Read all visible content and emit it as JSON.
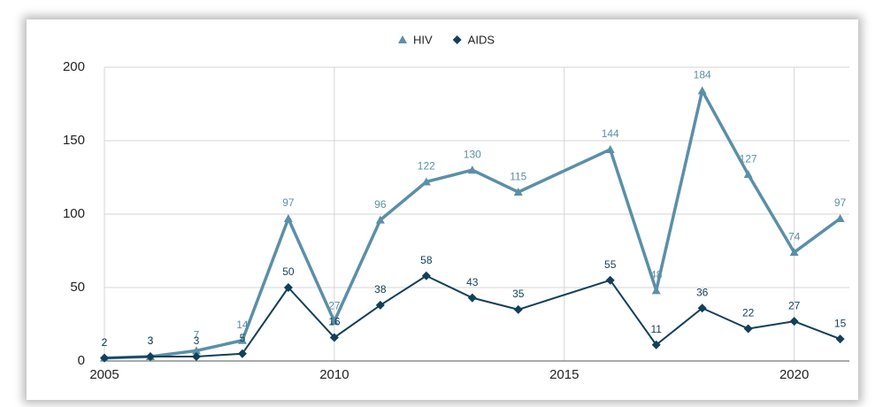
{
  "chart_data": {
    "type": "line",
    "x": [
      2005,
      2006,
      2007,
      2008,
      2009,
      2010,
      2011,
      2012,
      2013,
      2014,
      2016,
      2017,
      2018,
      2019,
      2020,
      2021
    ],
    "series": [
      {
        "name": "HIV",
        "color": "#5b8fa8",
        "marker": "triangle",
        "values": [
          2,
          3,
          7,
          14,
          97,
          27,
          96,
          122,
          130,
          115,
          144,
          48,
          184,
          127,
          74,
          97
        ]
      },
      {
        "name": "AIDS",
        "color": "#123f5a",
        "marker": "diamond",
        "values": [
          2,
          3,
          3,
          5,
          50,
          16,
          38,
          58,
          43,
          35,
          55,
          11,
          36,
          22,
          27,
          15
        ]
      }
    ],
    "xlim": [
      2005,
      2021.2
    ],
    "xticks": [
      2005,
      2010,
      2015,
      2020
    ],
    "ylim": [
      0,
      200
    ],
    "yticks": [
      0,
      50,
      100,
      150,
      200
    ],
    "grid": true,
    "legend": "top"
  }
}
